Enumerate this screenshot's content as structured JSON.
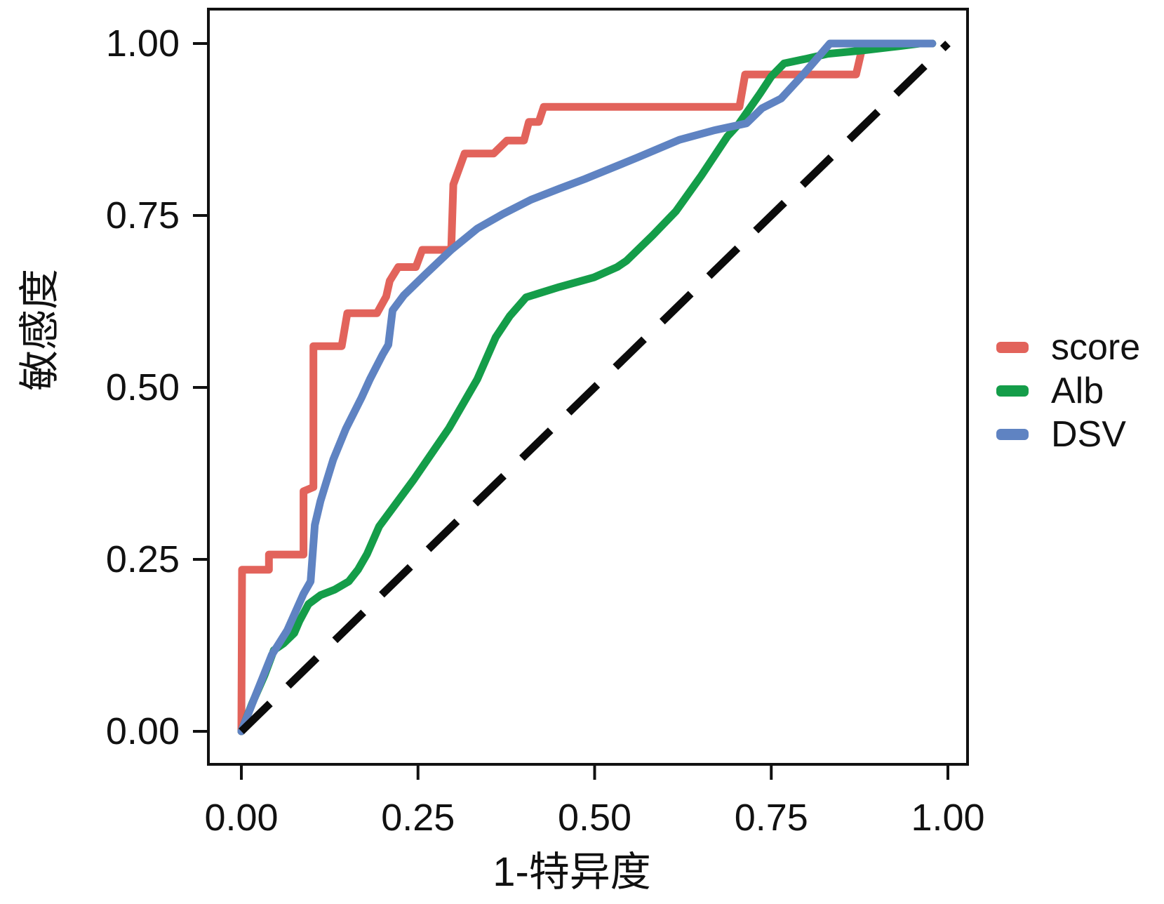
{
  "chart_data": {
    "type": "line",
    "title": "",
    "xlabel": "1-特异度",
    "ylabel": "敏感度",
    "xlim": [
      0,
      1
    ],
    "ylim": [
      0,
      1
    ],
    "x_tick_values": [
      0,
      0.25,
      0.5,
      0.75,
      1
    ],
    "x_tick_labels": [
      "0.00",
      "0.25",
      "0.50",
      "0.75",
      "1.00"
    ],
    "y_tick_values": [
      0,
      0.25,
      0.5,
      0.75,
      1
    ],
    "y_tick_labels": [
      "0.00",
      "0.25",
      "0.50",
      "0.75",
      "1.00"
    ],
    "grid": false,
    "legend_position": "right",
    "panel_border_color": "#111111",
    "series": [
      {
        "name": "score",
        "color": "#E2635B",
        "style": "solid",
        "points": [
          [
            0.0,
            0.0
          ],
          [
            0.001,
            0.235
          ],
          [
            0.039,
            0.235
          ],
          [
            0.039,
            0.257
          ],
          [
            0.088,
            0.257
          ],
          [
            0.088,
            0.349
          ],
          [
            0.102,
            0.355
          ],
          [
            0.102,
            0.56
          ],
          [
            0.142,
            0.56
          ],
          [
            0.15,
            0.608
          ],
          [
            0.192,
            0.608
          ],
          [
            0.205,
            0.632
          ],
          [
            0.21,
            0.655
          ],
          [
            0.222,
            0.675
          ],
          [
            0.247,
            0.675
          ],
          [
            0.256,
            0.7
          ],
          [
            0.297,
            0.7
          ],
          [
            0.3,
            0.795
          ],
          [
            0.316,
            0.84
          ],
          [
            0.357,
            0.84
          ],
          [
            0.376,
            0.859
          ],
          [
            0.4,
            0.859
          ],
          [
            0.407,
            0.886
          ],
          [
            0.421,
            0.886
          ],
          [
            0.428,
            0.908
          ],
          [
            0.705,
            0.908
          ],
          [
            0.713,
            0.955
          ],
          [
            0.87,
            0.955
          ],
          [
            0.878,
            0.99
          ]
        ]
      },
      {
        "name": "Alb",
        "color": "#149D49",
        "style": "solid",
        "points": [
          [
            0.0,
            0.0
          ],
          [
            0.015,
            0.04
          ],
          [
            0.033,
            0.082
          ],
          [
            0.046,
            0.118
          ],
          [
            0.06,
            0.128
          ],
          [
            0.075,
            0.143
          ],
          [
            0.082,
            0.16
          ],
          [
            0.095,
            0.185
          ],
          [
            0.112,
            0.198
          ],
          [
            0.132,
            0.206
          ],
          [
            0.152,
            0.218
          ],
          [
            0.165,
            0.235
          ],
          [
            0.178,
            0.258
          ],
          [
            0.195,
            0.298
          ],
          [
            0.244,
            0.366
          ],
          [
            0.294,
            0.441
          ],
          [
            0.334,
            0.512
          ],
          [
            0.36,
            0.573
          ],
          [
            0.38,
            0.604
          ],
          [
            0.403,
            0.631
          ],
          [
            0.45,
            0.646
          ],
          [
            0.499,
            0.66
          ],
          [
            0.532,
            0.675
          ],
          [
            0.545,
            0.684
          ],
          [
            0.582,
            0.721
          ],
          [
            0.615,
            0.756
          ],
          [
            0.651,
            0.808
          ],
          [
            0.688,
            0.865
          ],
          [
            0.704,
            0.883
          ],
          [
            0.734,
            0.927
          ],
          [
            0.75,
            0.952
          ],
          [
            0.768,
            0.971
          ],
          [
            0.8,
            0.978
          ],
          [
            0.83,
            0.985
          ],
          [
            0.88,
            0.99
          ],
          [
            0.93,
            0.996
          ],
          [
            0.96,
            1.0
          ],
          [
            0.978,
            1.0
          ]
        ]
      },
      {
        "name": "DSV",
        "color": "#5F83C2",
        "style": "solid",
        "points": [
          [
            0.0,
            0.0
          ],
          [
            0.02,
            0.052
          ],
          [
            0.043,
            0.111
          ],
          [
            0.065,
            0.147
          ],
          [
            0.088,
            0.2
          ],
          [
            0.098,
            0.218
          ],
          [
            0.104,
            0.3
          ],
          [
            0.112,
            0.335
          ],
          [
            0.13,
            0.395
          ],
          [
            0.148,
            0.44
          ],
          [
            0.17,
            0.485
          ],
          [
            0.182,
            0.512
          ],
          [
            0.2,
            0.548
          ],
          [
            0.208,
            0.562
          ],
          [
            0.214,
            0.612
          ],
          [
            0.23,
            0.634
          ],
          [
            0.26,
            0.664
          ],
          [
            0.297,
            0.7
          ],
          [
            0.334,
            0.731
          ],
          [
            0.37,
            0.752
          ],
          [
            0.41,
            0.773
          ],
          [
            0.45,
            0.789
          ],
          [
            0.486,
            0.803
          ],
          [
            0.56,
            0.834
          ],
          [
            0.62,
            0.86
          ],
          [
            0.67,
            0.874
          ],
          [
            0.715,
            0.884
          ],
          [
            0.737,
            0.906
          ],
          [
            0.764,
            0.92
          ],
          [
            0.797,
            0.957
          ],
          [
            0.833,
            1.0
          ],
          [
            0.978,
            1.0
          ]
        ]
      },
      {
        "name": "reference",
        "color": "#0b0b0b",
        "style": "dashed",
        "points": [
          [
            0,
            0
          ],
          [
            1,
            1
          ]
        ]
      }
    ],
    "legend_entries": [
      {
        "label": "score",
        "color": "#E2635B"
      },
      {
        "label": "Alb",
        "color": "#149D49"
      },
      {
        "label": "DSV",
        "color": "#5F83C2"
      }
    ]
  }
}
